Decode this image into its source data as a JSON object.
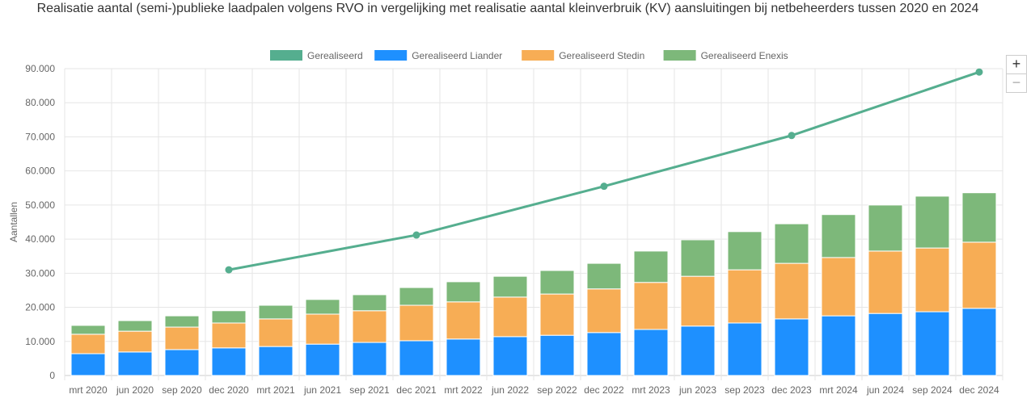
{
  "chart_data": {
    "type": "bar",
    "title": "Realisatie aantal (semi-)publieke laadpalen volgens RVO in vergelijking met realisatie aantal kleinverbruik (KV) aansluitingen bij netbeheerders tussen 2020 en 2024",
    "ylabel": "Aantallen",
    "ylim": [
      0,
      90000
    ],
    "yticks": [
      "0",
      "10.000",
      "20.000",
      "30.000",
      "40.000",
      "50.000",
      "60.000",
      "70.000",
      "80.000",
      "90.000"
    ],
    "grid": true,
    "legend": "top",
    "stacked": true,
    "categories": [
      "mrt 2020",
      "jun 2020",
      "sep 2020",
      "dec 2020",
      "mrt 2021",
      "jun 2021",
      "sep 2021",
      "dec 2021",
      "mrt 2022",
      "jun 2022",
      "sep 2022",
      "dec 2022",
      "mrt 2023",
      "jun 2023",
      "sep 2023",
      "dec 2023",
      "mrt 2024",
      "jun 2024",
      "sep 2024",
      "dec 2024"
    ],
    "series": [
      {
        "name": "Gerealiseerd",
        "type": "line",
        "color": "#55ae8f",
        "values": [
          null,
          null,
          null,
          31000,
          null,
          null,
          null,
          41200,
          null,
          null,
          null,
          55500,
          null,
          null,
          null,
          70400,
          null,
          null,
          null,
          89000
        ]
      },
      {
        "name": "Gerealiseerd Liander",
        "type": "bar",
        "color": "#1e90ff",
        "values": [
          6400,
          6900,
          7600,
          8100,
          8500,
          9200,
          9700,
          10200,
          10700,
          11400,
          11800,
          12600,
          13500,
          14500,
          15400,
          16600,
          17500,
          18200,
          18700,
          19700
        ]
      },
      {
        "name": "Gerealiseerd Stedin",
        "type": "bar",
        "color": "#f7ad55",
        "values": [
          5700,
          6100,
          6600,
          7300,
          8100,
          8800,
          9300,
          10400,
          10900,
          11600,
          12100,
          12800,
          13800,
          14600,
          15600,
          16300,
          17100,
          18300,
          18700,
          19400
        ]
      },
      {
        "name": "Gerealiseerd Enexis",
        "type": "bar",
        "color": "#7db87a",
        "values": [
          2600,
          3100,
          3300,
          3600,
          4000,
          4300,
          4700,
          5200,
          5900,
          6100,
          6900,
          7500,
          9200,
          10700,
          11200,
          11600,
          12600,
          13500,
          15200,
          14500
        ]
      }
    ]
  },
  "controls": {
    "zoom_in": "+",
    "zoom_out": "−"
  }
}
